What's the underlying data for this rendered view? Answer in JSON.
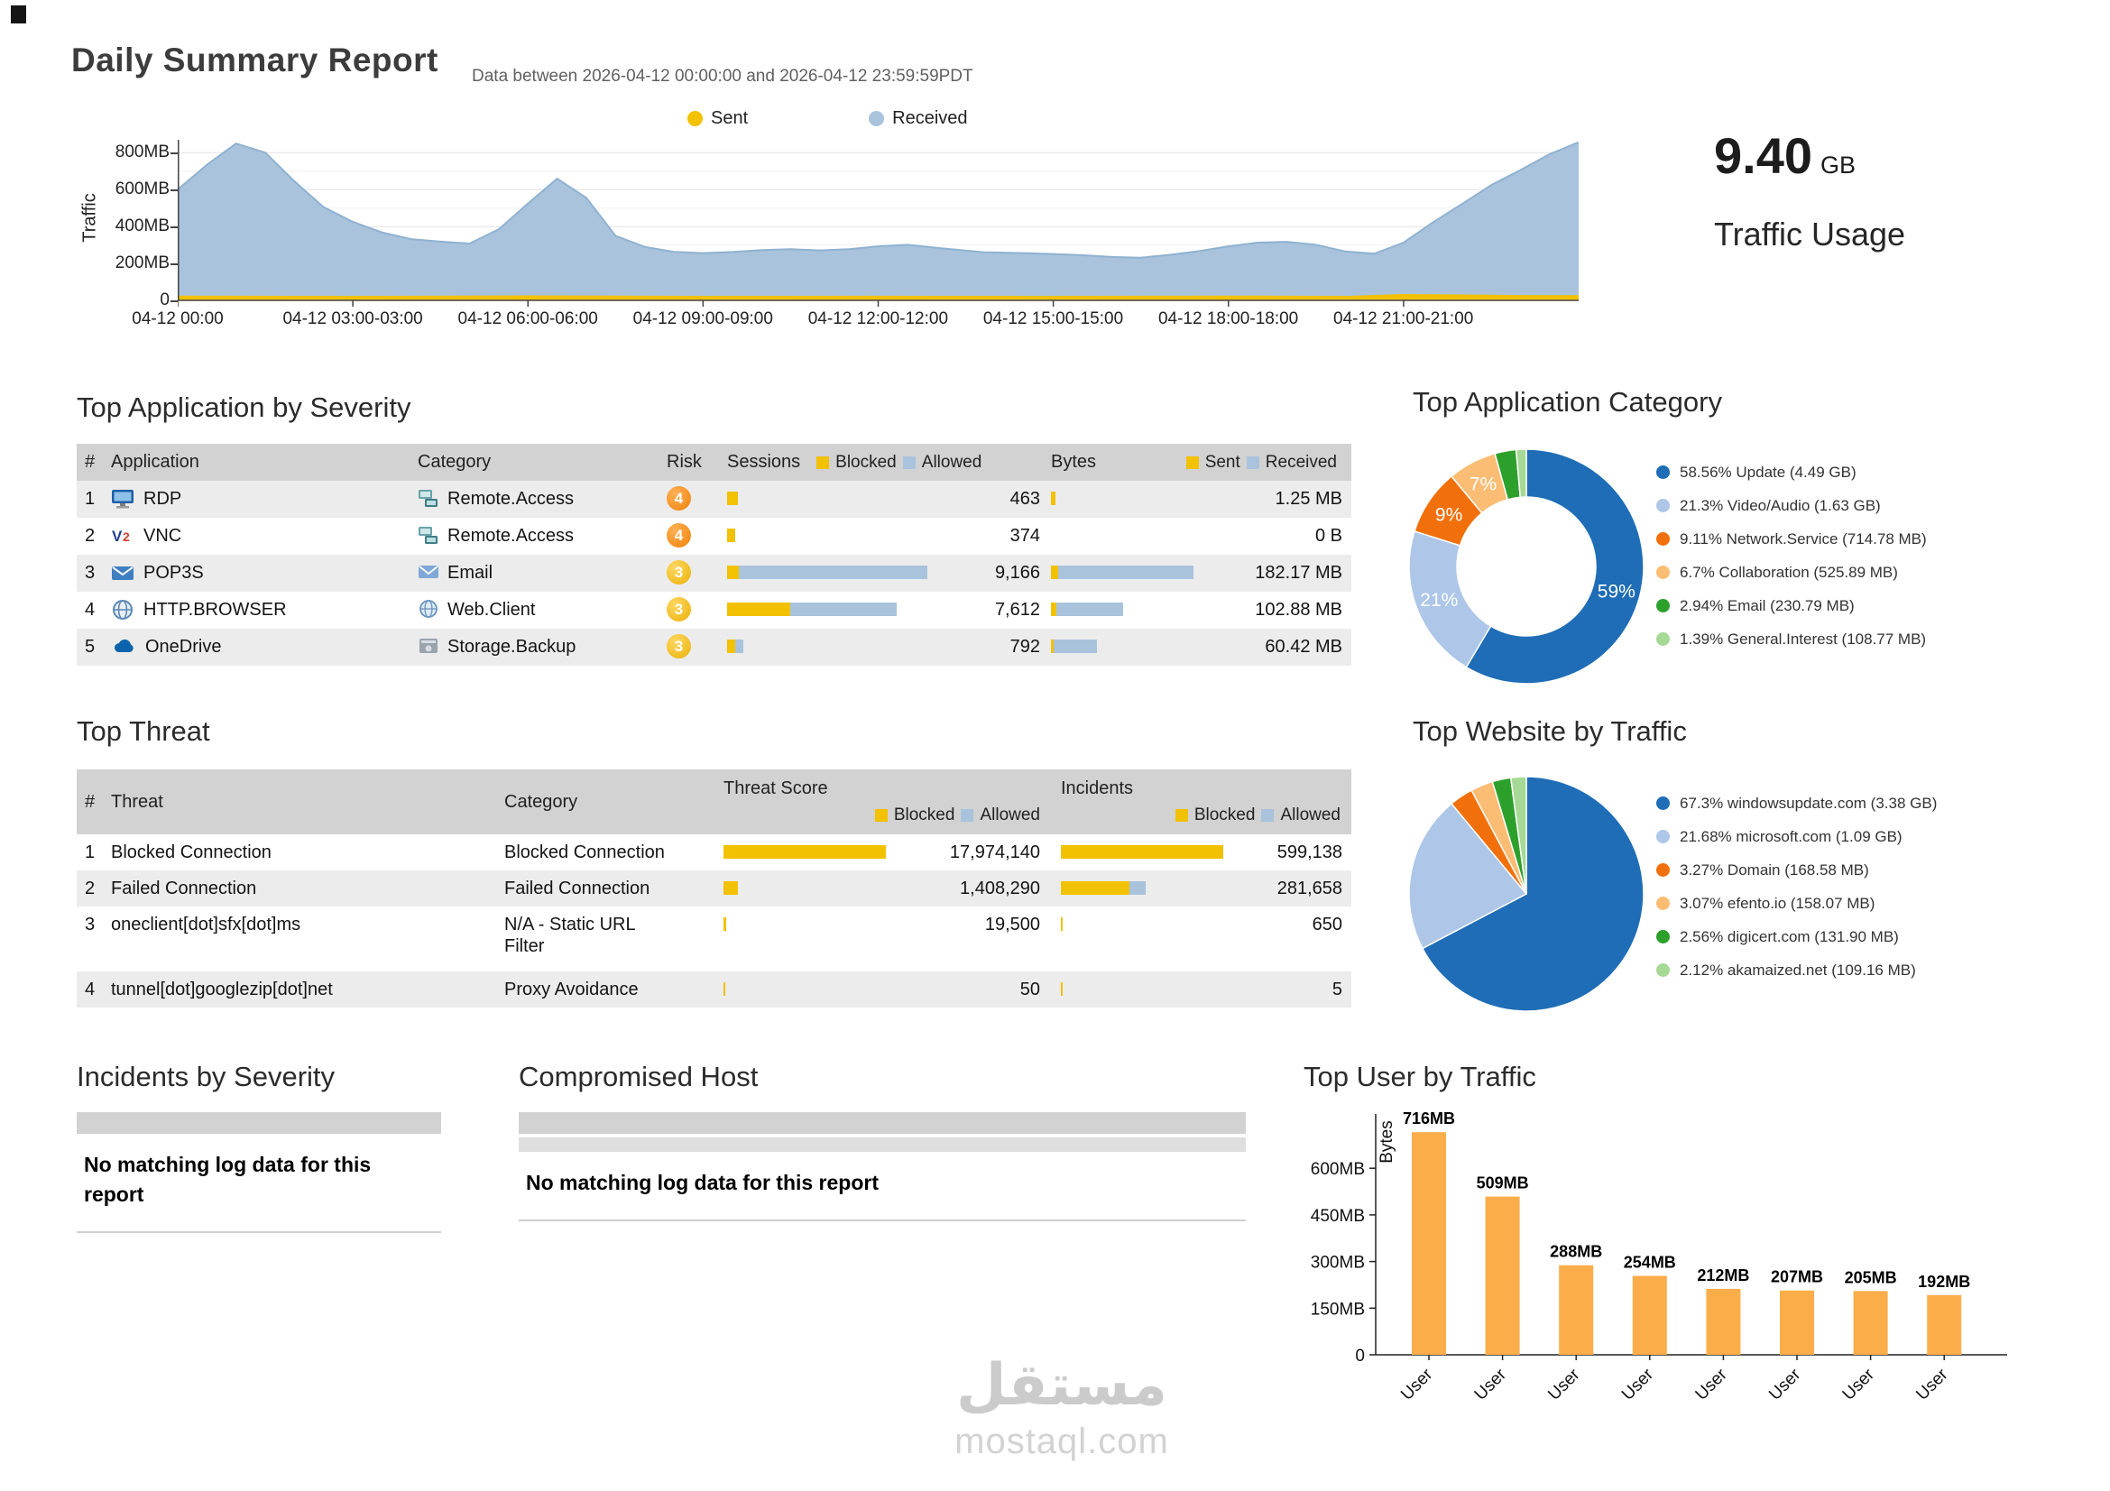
{
  "page": {
    "title": "Daily Summary Report",
    "subtitle": "Data between 2026-04-12 00:00:00 and 2026-04-12 23:59:59PDT"
  },
  "traffic_usage": {
    "value": "9.40",
    "unit": "GB",
    "label": "Traffic Usage"
  },
  "sections": {
    "app_severity": "Top Application by Severity",
    "app_category": "Top Application Category",
    "top_threat": "Top Threat",
    "top_website": "Top Website by Traffic",
    "incidents": "Incidents by Severity",
    "compromised": "Compromised Host",
    "top_user": "Top User by Traffic"
  },
  "no_data_message": "No matching log data for this report",
  "app_table": {
    "columns": {
      "num": "#",
      "application": "Application",
      "category": "Category",
      "risk": "Risk",
      "sessions": "Sessions",
      "blocked": "Blocked",
      "allowed": "Allowed",
      "bytes": "Bytes",
      "sent": "Sent",
      "received": "Received"
    },
    "rows": [
      {
        "num": "1",
        "application": "RDP",
        "app_icon": "rdp-icon",
        "category": "Remote.Access",
        "cat_icon": "remote-access-icon",
        "risk": "4",
        "risk_level": "4",
        "sessions": "463",
        "sessions_bar": {
          "blocked": 12,
          "allowed": 0
        },
        "bytes": "1.25 MB",
        "bytes_bar": {
          "sent": 5,
          "received": 0
        }
      },
      {
        "num": "2",
        "application": "VNC",
        "app_icon": "vnc-icon",
        "category": "Remote.Access",
        "cat_icon": "remote-access-icon",
        "risk": "4",
        "risk_level": "4",
        "sessions": "374",
        "sessions_bar": {
          "bl ocked": 0,
          "blocked": 9,
          "allowed": 0
        },
        "bytes": "0 B",
        "bytes_bar": {
          "sent": 0,
          "received": 0
        }
      },
      {
        "num": "3",
        "application": "POP3S",
        "app_icon": "pop3s-icon",
        "category": "Email",
        "cat_icon": "email-icon",
        "risk": "3",
        "risk_level": "3",
        "sessions": "9,166",
        "sessions_bar": {
          "blocked": 13,
          "allowed": 209
        },
        "bytes": "182.17 MB",
        "bytes_bar": {
          "sent": 8,
          "received": 150
        }
      },
      {
        "num": "4",
        "application": "HTTP.BROWSER",
        "app_icon": "http-browser-icon",
        "category": "Web.Client",
        "cat_icon": "web-client-icon",
        "risk": "3",
        "risk_level": "3",
        "sessions": "7,612",
        "sessions_bar": {
          "blocked": 70,
          "allowed": 118
        },
        "bytes": "102.88 MB",
        "bytes_bar": {
          "sent": 6,
          "received": 74
        }
      },
      {
        "num": "5",
        "application": "OneDrive",
        "app_icon": "onedrive-icon",
        "category": "Storage.Backup",
        "cat_icon": "storage-backup-icon",
        "risk": "3",
        "risk_level": "3",
        "sessions": "792",
        "sessions_bar": {
          "blocked": 9,
          "allowed": 9
        },
        "bytes": "60.42 MB",
        "bytes_bar": {
          "sent": 3,
          "received": 48
        }
      }
    ]
  },
  "threat_table": {
    "columns": {
      "num": "#",
      "threat": "Threat",
      "category": "Category",
      "score": "Threat Score",
      "incidents": "Incidents",
      "blocked": "Blocked",
      "allowed": "Allowed"
    },
    "rows": [
      {
        "num": "1",
        "threat": "Blocked Connection",
        "category": "Blocked Connection",
        "score": "17,974,140",
        "score_bar": {
          "blocked": 180,
          "allowed": 0
        },
        "incidents": "599,138",
        "incidents_bar": {
          "blocked": 180,
          "allowed": 0
        },
        "tall": false
      },
      {
        "num": "2",
        "threat": "Failed Connection",
        "category": "Failed Connection",
        "score": "1,408,290",
        "score_bar": {
          "blocked": 16,
          "allowed": 0
        },
        "incidents": "281,658",
        "incidents_bar": {
          "blocked": 76,
          "allowed": 18
        },
        "tall": false
      },
      {
        "num": "3",
        "threat": "oneclient[dot]sfx[dot]ms",
        "category": "N/A - Static URL Filter",
        "score": "19,500",
        "score_bar": {
          "blocked": 3,
          "allowed": 0
        },
        "incidents": "650",
        "incidents_bar": {
          "blocked": 2,
          "allowed": 0
        },
        "tall": true
      },
      {
        "num": "4",
        "threat": "tunnel[dot]googlezip[dot]net",
        "category": "Proxy Avoidance",
        "score": "50",
        "score_bar": {
          "blocked": 2,
          "allowed": 0
        },
        "incidents": "5",
        "incidents_bar": {
          "blocked": 2,
          "allowed": 0
        },
        "tall": false
      }
    ]
  },
  "watermark": {
    "arabic": "مستقل",
    "latin": "mostaql.com"
  },
  "chart_data": [
    {
      "id": "traffic_over_time",
      "type": "area",
      "title": "Traffic over time",
      "ylabel": "Traffic",
      "ymax_mb": 870,
      "gridlines_mb": [
        100,
        200,
        300,
        400,
        500,
        600,
        700,
        800
      ],
      "yticks": [
        {
          "mb": 0,
          "label": "0"
        },
        {
          "mb": 200,
          "label": "200MB"
        },
        {
          "mb": 400,
          "label": "400MB"
        },
        {
          "mb": 600,
          "label": "600MB"
        },
        {
          "mb": 800,
          "label": "800MB"
        }
      ],
      "xticks": [
        "04-12 00:00",
        "04-12 03:00-03:00",
        "04-12 06:00-06:00",
        "04-12 09:00-09:00",
        "04-12 12:00-12:00",
        "04-12 15:00-15:00",
        "04-12 18:00-18:00",
        "04-12 21:00-21:00"
      ],
      "legend": [
        {
          "name": "Sent",
          "color": "#f2c100"
        },
        {
          "name": "Received",
          "color": "#a9c3dc"
        }
      ],
      "series": [
        {
          "name": "Received",
          "color": "#a9c3dc",
          "stroke": "#8fb2d0",
          "points": [
            [
              0,
              600
            ],
            [
              0.5,
              735
            ],
            [
              1,
              850
            ],
            [
              1.5,
              800
            ],
            [
              2,
              645
            ],
            [
              2.5,
              505
            ],
            [
              3,
              425
            ],
            [
              3.5,
              368
            ],
            [
              4,
              332
            ],
            [
              4.5,
              318
            ],
            [
              5,
              308
            ],
            [
              5.5,
              385
            ],
            [
              6,
              525
            ],
            [
              6.5,
              660
            ],
            [
              7,
              555
            ],
            [
              7.5,
              350
            ],
            [
              8,
              290
            ],
            [
              8.5,
              263
            ],
            [
              9,
              256
            ],
            [
              9.5,
              262
            ],
            [
              10,
              272
            ],
            [
              10.5,
              277
            ],
            [
              11,
              271
            ],
            [
              11.5,
              277
            ],
            [
              12,
              293
            ],
            [
              12.5,
              301
            ],
            [
              13,
              285
            ],
            [
              13.8,
              261
            ],
            [
              14.5,
              256
            ],
            [
              15,
              251
            ],
            [
              15.5,
              245
            ],
            [
              16,
              235
            ],
            [
              16.5,
              231
            ],
            [
              17,
              247
            ],
            [
              17.5,
              267
            ],
            [
              18,
              293
            ],
            [
              18.5,
              313
            ],
            [
              19,
              317
            ],
            [
              19.5,
              301
            ],
            [
              20,
              265
            ],
            [
              20.5,
              253
            ],
            [
              21,
              313
            ],
            [
              21.5,
              422
            ],
            [
              22,
              522
            ],
            [
              22.5,
              624
            ],
            [
              23,
              706
            ],
            [
              23.5,
              792
            ],
            [
              24,
              857
            ]
          ]
        },
        {
          "name": "Sent",
          "color": "#f2c100",
          "stroke": null,
          "points": [
            [
              0,
              26
            ],
            [
              3,
              24
            ],
            [
              6,
              27
            ],
            [
              9,
              24
            ],
            [
              12,
              25
            ],
            [
              15,
              24
            ],
            [
              18,
              26
            ],
            [
              20,
              24
            ],
            [
              21,
              34
            ],
            [
              22,
              32
            ],
            [
              23,
              29
            ],
            [
              24,
              28
            ]
          ]
        }
      ]
    },
    {
      "id": "top_application_category",
      "type": "pie",
      "donut": true,
      "title": "Top Application Category",
      "segments": [
        {
          "label": "Update",
          "pct": 58.56,
          "size": "4.49 GB",
          "color": "#1e6db6",
          "legend": "58.56% Update (4.49 GB)",
          "slice_label": "59%"
        },
        {
          "label": "Video/Audio",
          "pct": 21.3,
          "size": "1.63 GB",
          "color": "#aec7e8",
          "legend": "21.3% Video/Audio (1.63 GB)",
          "slice_label": "21%"
        },
        {
          "label": "Network.Service",
          "pct": 9.11,
          "size": "714.78 MB",
          "color": "#f2700c",
          "legend": "9.11% Network.Service (714.78 MB)",
          "slice_label": "9%"
        },
        {
          "label": "Collaboration",
          "pct": 6.7,
          "size": "525.89 MB",
          "color": "#fbbd74",
          "legend": "6.7% Collaboration (525.89 MB)",
          "slice_label": "7%"
        },
        {
          "label": "Email",
          "pct": 2.94,
          "size": "230.79 MB",
          "color": "#2da02c",
          "legend": "2.94% Email (230.79 MB)",
          "slice_label": null
        },
        {
          "label": "General.Interest",
          "pct": 1.39,
          "size": "108.77 MB",
          "color": "#a6d996",
          "legend": "1.39% General.Interest (108.77 MB)",
          "slice_label": null
        }
      ]
    },
    {
      "id": "top_website_by_traffic",
      "type": "pie",
      "donut": false,
      "title": "Top Website by Traffic",
      "segments": [
        {
          "label": "windowsupdate.com",
          "pct": 67.3,
          "size": "3.38 GB",
          "color": "#1e6db6",
          "legend": "67.3% windowsupdate.com (3.38 GB)",
          "slice_label": null
        },
        {
          "label": "microsoft.com",
          "pct": 21.68,
          "size": "1.09 GB",
          "color": "#aec7e8",
          "legend": "21.68% microsoft.com (1.09 GB)",
          "slice_label": null
        },
        {
          "label": "Domain",
          "pct": 3.27,
          "size": "168.58 MB",
          "color": "#f2700c",
          "legend": "3.27% Domain (168.58 MB)",
          "slice_label": null
        },
        {
          "label": "efento.io",
          "pct": 3.07,
          "size": "158.07 MB",
          "color": "#fbbd74",
          "legend": "3.07% efento.io (158.07 MB)",
          "slice_label": null
        },
        {
          "label": "digicert.com",
          "pct": 2.56,
          "size": "131.90 MB",
          "color": "#2da02c",
          "legend": "2.56% digicert.com (131.90 MB)",
          "slice_label": null
        },
        {
          "label": "akamaized.net",
          "pct": 2.12,
          "size": "109.16 MB",
          "color": "#a6d996",
          "legend": "2.12% akamaized.net (109.16 MB)",
          "slice_label": null
        }
      ]
    },
    {
      "id": "top_user_by_traffic",
      "type": "bar",
      "title": "Top User by Traffic",
      "ylabel": "Bytes",
      "bar_color": "#fbad4a",
      "ymax_mb": 780,
      "yticks": [
        {
          "mb": 0,
          "label": "0"
        },
        {
          "mb": 150,
          "label": "150MB"
        },
        {
          "mb": 300,
          "label": "300MB"
        },
        {
          "mb": 450,
          "label": "450MB"
        },
        {
          "mb": 600,
          "label": "600MB"
        }
      ],
      "bars": [
        {
          "value_mb": 716,
          "top_label": "716MB",
          "x_label": "User"
        },
        {
          "value_mb": 509,
          "top_label": "509MB",
          "x_label": "User"
        },
        {
          "value_mb": 288,
          "top_label": "288MB",
          "x_label": "User"
        },
        {
          "value_mb": 254,
          "top_label": "254MB",
          "x_label": "User"
        },
        {
          "value_mb": 212,
          "top_label": "212MB",
          "x_label": "User"
        },
        {
          "value_mb": 207,
          "top_label": "207MB",
          "x_label": "User"
        },
        {
          "value_mb": 205,
          "top_label": "205MB",
          "x_label": "User"
        },
        {
          "value_mb": 192,
          "top_label": "192MB",
          "x_label": "User"
        }
      ]
    }
  ]
}
